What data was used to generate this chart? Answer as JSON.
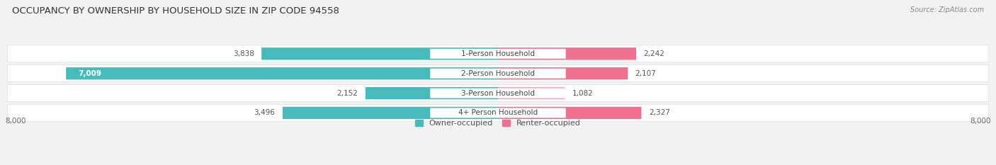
{
  "title": "OCCUPANCY BY OWNERSHIP BY HOUSEHOLD SIZE IN ZIP CODE 94558",
  "source": "Source: ZipAtlas.com",
  "categories": [
    "1-Person Household",
    "2-Person Household",
    "3-Person Household",
    "4+ Person Household"
  ],
  "owner_values": [
    3838,
    7009,
    2152,
    3496
  ],
  "renter_values": [
    2242,
    2107,
    1082,
    2327
  ],
  "owner_color": "#45BBBB",
  "renter_color": "#F07090",
  "renter_color_light": "#F4A8BE",
  "bg_color": "#f2f2f2",
  "row_bg_color": "#ffffff",
  "max_val": 8000,
  "title_fontsize": 9.5,
  "source_fontsize": 7,
  "bar_label_fontsize": 7.5,
  "cat_label_fontsize": 7.5,
  "tick_fontsize": 7.5,
  "legend_fontsize": 8
}
